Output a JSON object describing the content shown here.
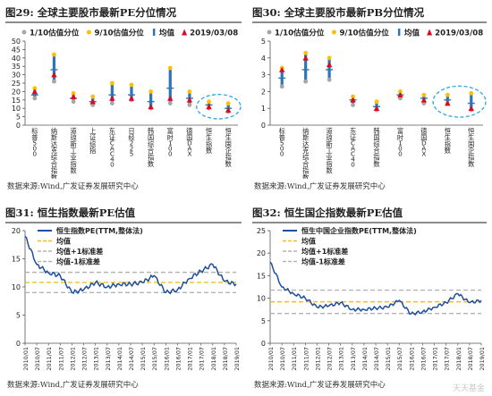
{
  "panels": [
    {
      "fig": "图29:",
      "title": "全球主要股市最新PE分位情况",
      "source": "数据来源:Wind,广发证券发展研究中心",
      "chart_data": {
        "type": "range",
        "legend": [
          "1/10估值分位",
          "9/10估值分位",
          "均值",
          "2019/03/08"
        ],
        "categories": [
          "标普500",
          "纳斯达克综合指数",
          "道琼斯工业指数",
          "上证综指",
          "东证CAC40",
          "日经225",
          "韩国综合指数",
          "富时100",
          "德国DAX",
          "恒生指数",
          "恒生国企指数"
        ],
        "low": [
          16,
          26,
          14,
          12,
          13,
          15,
          10,
          13,
          12,
          10,
          8
        ],
        "high": [
          22,
          42,
          19,
          17,
          25,
          24,
          20,
          34,
          20,
          14,
          13
        ],
        "mean": [
          18,
          33,
          16,
          14,
          18,
          18,
          14,
          22,
          16,
          12,
          10
        ],
        "current": [
          20,
          30,
          17,
          14,
          16,
          16,
          11,
          16,
          15,
          11,
          9
        ],
        "ylim": [
          0,
          50
        ],
        "yticks": [
          0,
          5,
          10,
          15,
          20,
          25,
          30,
          35,
          40,
          45,
          50
        ],
        "highlight": [
          "恒生指数",
          "恒生国企指数"
        ]
      }
    },
    {
      "fig": "图30:",
      "title": "全球主要股市最新PB分位情况",
      "source": "数据来源:Wind,广发证券发展研究中心",
      "chart_data": {
        "type": "range",
        "legend": [
          "1/10估值分位",
          "9/10估值分位",
          "均值",
          "2019/03/08"
        ],
        "categories": [
          "标普500",
          "纳斯达克综合指数",
          "道琼斯工业指数",
          "东证CAC40",
          "韩国综合指数",
          "富时100",
          "德国DAX",
          "恒生指数",
          "恒生国企指数"
        ],
        "low": [
          2.3,
          2.6,
          2.7,
          1.2,
          0.9,
          1.6,
          1.3,
          1.3,
          0.9
        ],
        "high": [
          3.4,
          4.3,
          4.0,
          1.7,
          1.4,
          2.0,
          1.8,
          1.8,
          1.9
        ],
        "mean": [
          2.8,
          3.3,
          3.3,
          1.5,
          1.1,
          1.8,
          1.6,
          1.5,
          1.3
        ],
        "current": [
          3.3,
          4.0,
          3.6,
          1.5,
          1.0,
          1.8,
          1.5,
          1.3,
          1.0
        ],
        "ylim": [
          0,
          5
        ],
        "yticks": [
          0,
          1,
          2,
          3,
          4,
          5
        ],
        "highlight": [
          "恒生指数",
          "恒生国企指数"
        ]
      }
    },
    {
      "fig": "图31:",
      "title": "恒生指数最新PE估值",
      "source": "数据来源:Wind,广发证券发展研究中心",
      "chart_data": {
        "type": "line",
        "legend": [
          "恒生指数PE(TTM,整体法)",
          "均值",
          "均值+1标准差",
          "均值-1标准差"
        ],
        "x": [
          "2010/01",
          "2010/07",
          "2011/01",
          "2011/07",
          "2012/01",
          "2012/07",
          "2013/01",
          "2013/07",
          "2014/01",
          "2014/07",
          "2015/01",
          "2015/07",
          "2016/01",
          "2016/07",
          "2017/01",
          "2017/07",
          "2018/01",
          "2018/07",
          "2019/01"
        ],
        "xticks": [
          "2010/01",
          "2010/07",
          "2011/01",
          "2011/07",
          "2012/01",
          "2012/07",
          "2013/01",
          "2013/07",
          "2014/01",
          "2014/07",
          "2015/01",
          "2015/07",
          "2016/01",
          "2016/07",
          "2017/01",
          "2017/07",
          "2018/01",
          "2018/07",
          "2019/01"
        ],
        "values": [
          19.0,
          14.0,
          12.5,
          12.0,
          9.0,
          9.5,
          10.8,
          10.0,
          10.5,
          10.5,
          10.8,
          12.0,
          9.0,
          9.5,
          11.5,
          12.8,
          14.0,
          11.0,
          10.5
        ],
        "mean": 10.8,
        "plus1sd": 12.6,
        "minus1sd": 9.0,
        "ylim": [
          0,
          20
        ],
        "yticks": [
          0,
          5,
          10,
          15,
          20
        ]
      }
    },
    {
      "fig": "图32:",
      "title": "恒生国企指数最新PE估值",
      "source": "数据来源:Wind,广发证券发展研究中心",
      "chart_data": {
        "type": "line",
        "legend": [
          "恒生中国企业指数PE(TTM,整体法)",
          "均值",
          "均值+1标准差",
          "均值-1标准差"
        ],
        "x": [
          "2010/01",
          "2010/07",
          "2011/01",
          "2011/07",
          "2012/01",
          "2012/07",
          "2013/01",
          "2013/07",
          "2014/01",
          "2014/07",
          "2015/01",
          "2015/07",
          "2016/01",
          "2016/07",
          "2017/01",
          "2017/07",
          "2018/01",
          "2018/07",
          "2019/01"
        ],
        "xticks": [
          "2010/01",
          "2010/07",
          "2011/01",
          "2011/07",
          "2012/01",
          "2012/07",
          "2013/01",
          "2013/07",
          "2014/01",
          "2014/07",
          "2015/01",
          "2015/07",
          "2016/01",
          "2016/07",
          "2017/01",
          "2017/07",
          "2018/01",
          "2018/07",
          "2019/01"
        ],
        "values": [
          18.0,
          12.5,
          11.0,
          10.0,
          8.0,
          8.3,
          9.0,
          7.5,
          7.5,
          7.8,
          8.0,
          9.5,
          6.5,
          7.0,
          8.0,
          9.0,
          11.0,
          9.0,
          9.5
        ],
        "mean": 9.2,
        "plus1sd": 11.8,
        "minus1sd": 6.6,
        "ylim": [
          0,
          25
        ],
        "yticks": [
          0,
          5,
          10,
          15,
          20,
          25
        ]
      }
    }
  ],
  "colors": {
    "low_dot": "#a6a6a6",
    "high_dot": "#ffc000",
    "range_bar": "#2e75b6",
    "current": "#e3051b",
    "highlight": "#2aa8e0",
    "line": "#1f4e9c",
    "mean_line": "#f0c020",
    "sd_line": "#b3b3b3"
  },
  "watermark": "天天基金"
}
